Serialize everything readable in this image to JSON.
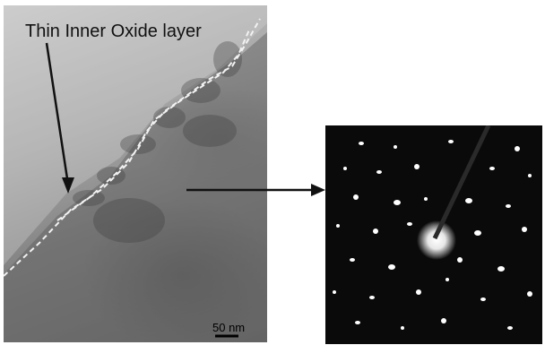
{
  "figure": {
    "annotation_label": "Thin Inner Oxide layer",
    "scale_bar_label": "50 nm"
  },
  "colors": {
    "background": "#ffffff",
    "dashed_boundary": "#f2f2f2",
    "arrow": "#111111",
    "diffraction_background": "#0a0a0a",
    "diffraction_spots": "#ffffff"
  }
}
